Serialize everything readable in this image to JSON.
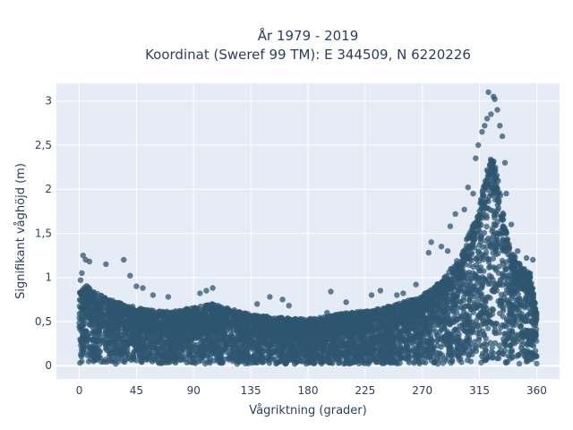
{
  "chart_data": {
    "type": "scatter",
    "title": [
      "År 1979 - 2019",
      "Koordinat (Sweref 99 TM): E 344509, N 6220226"
    ],
    "xlabel": "Vågriktning (grader)",
    "ylabel": "Signifikant våghöjd (m)",
    "xlim": [
      -18,
      378
    ],
    "ylim": [
      -0.15,
      3.2
    ],
    "xticks": [
      0,
      45,
      90,
      135,
      180,
      225,
      270,
      315,
      360
    ],
    "xtick_labels": [
      "0",
      "45",
      "90",
      "135",
      "180",
      "225",
      "270",
      "315",
      "360"
    ],
    "yticks": [
      0,
      0.5,
      1,
      1.5,
      2,
      2.5,
      3
    ],
    "ytick_labels": [
      "0",
      "0,5",
      "1",
      "1,5",
      "2",
      "2,5",
      "3"
    ],
    "grid": true,
    "colors": {
      "plot_bg": "#e5ecf6",
      "grid": "#ffffff",
      "marker": "#2f5670",
      "text": "#2a3f5f"
    },
    "series": [
      {
        "envelope_direction": [
          0,
          5,
          10,
          20,
          30,
          45,
          60,
          75,
          90,
          105,
          120,
          135,
          150,
          165,
          180,
          195,
          210,
          225,
          240,
          255,
          270,
          280,
          290,
          300,
          305,
          310,
          315,
          320,
          325,
          330,
          335,
          340,
          345,
          350,
          355,
          360
        ],
        "envelope_height": [
          0.85,
          0.92,
          0.85,
          0.78,
          0.72,
          0.66,
          0.62,
          0.62,
          0.66,
          0.7,
          0.64,
          0.58,
          0.56,
          0.54,
          0.53,
          0.56,
          0.6,
          0.62,
          0.66,
          0.72,
          0.8,
          0.9,
          1.05,
          1.25,
          1.45,
          1.6,
          1.8,
          2.2,
          2.4,
          2.1,
          1.6,
          1.3,
          1.2,
          1.1,
          1.05,
          0.6
        ],
        "outliers": [
          [
            3,
            1.25
          ],
          [
            5,
            1.2
          ],
          [
            8,
            1.18
          ],
          [
            2,
            1.05
          ],
          [
            1,
            0.97
          ],
          [
            21,
            1.15
          ],
          [
            35,
            1.2
          ],
          [
            40,
            1.02
          ],
          [
            45,
            0.9
          ],
          [
            50,
            0.88
          ],
          [
            58,
            0.8
          ],
          [
            70,
            0.78
          ],
          [
            95,
            0.82
          ],
          [
            100,
            0.85
          ],
          [
            105,
            0.88
          ],
          [
            140,
            0.7
          ],
          [
            150,
            0.78
          ],
          [
            160,
            0.75
          ],
          [
            165,
            0.68
          ],
          [
            195,
            0.6
          ],
          [
            198,
            0.84
          ],
          [
            210,
            0.72
          ],
          [
            230,
            0.8
          ],
          [
            237,
            0.85
          ],
          [
            250,
            0.8
          ],
          [
            255,
            0.82
          ],
          [
            265,
            0.92
          ],
          [
            275,
            1.28
          ],
          [
            277,
            1.4
          ],
          [
            285,
            1.35
          ],
          [
            290,
            1.3
          ],
          [
            292,
            1.58
          ],
          [
            296,
            1.72
          ],
          [
            303,
            1.77
          ],
          [
            306,
            2.02
          ],
          [
            310,
            1.95
          ],
          [
            312,
            2.35
          ],
          [
            314,
            2.5
          ],
          [
            317,
            2.65
          ],
          [
            319,
            2.72
          ],
          [
            321,
            2.8
          ],
          [
            322,
            3.1
          ],
          [
            324,
            2.85
          ],
          [
            326,
            3.05
          ],
          [
            327,
            3.02
          ],
          [
            329,
            2.9
          ],
          [
            331,
            2.72
          ],
          [
            333,
            2.6
          ],
          [
            335,
            2.3
          ],
          [
            336,
            1.95
          ],
          [
            340,
            1.6
          ],
          [
            345,
            1.3
          ],
          [
            352,
            1.22
          ],
          [
            357,
            1.2
          ]
        ]
      }
    ]
  }
}
